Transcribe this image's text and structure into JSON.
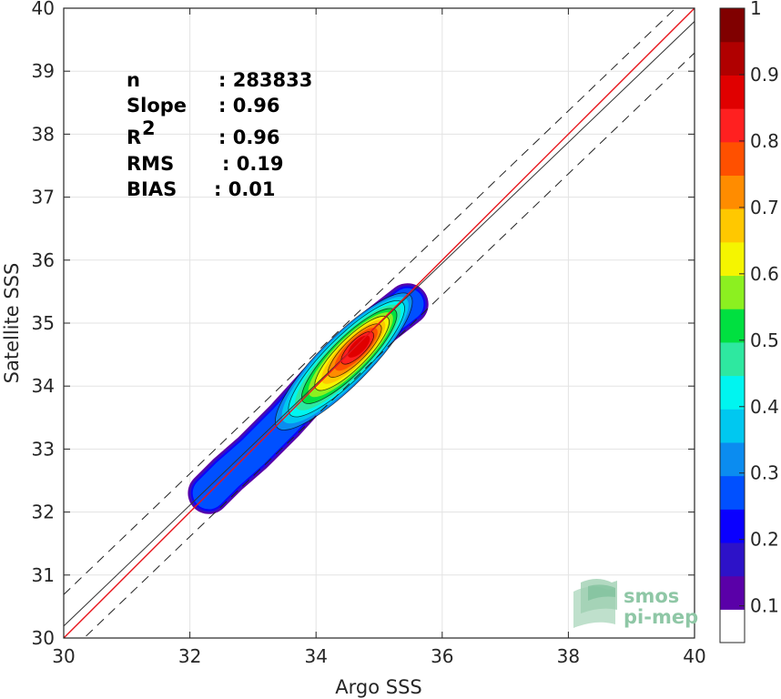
{
  "chart_data": {
    "type": "density-contour-scatter",
    "xlabel": "Argo SSS",
    "ylabel": "Satellite SSS",
    "xlim": [
      30,
      40
    ],
    "ylim": [
      30,
      40
    ],
    "xticks": [
      30,
      32,
      34,
      36,
      38,
      40
    ],
    "yticks": [
      30,
      31,
      32,
      33,
      34,
      35,
      36,
      37,
      38,
      39,
      40
    ],
    "grid": true,
    "stats": [
      {
        "label": "n",
        "value": ": 283833"
      },
      {
        "label": "Slope",
        "value": ": 0.96"
      },
      {
        "label": "R",
        "sup": "2",
        "value": ": 0.96"
      },
      {
        "label": "RMS",
        "value": ": 0.19"
      },
      {
        "label": "BIAS",
        "value": ": 0.01"
      }
    ],
    "lines": {
      "identity": {
        "slope": 1,
        "intercept": 0,
        "color": "#e8141b"
      },
      "fit": {
        "slope": 0.96,
        "intercept": 1.39,
        "color": "#333333"
      },
      "envelope_offset": 0.5
    },
    "density": {
      "peak": [
        34.7,
        34.65
      ],
      "ridge": [
        [
          32.3,
          32.3
        ],
        [
          32.6,
          32.6
        ],
        [
          33.0,
          32.95
        ],
        [
          33.5,
          33.45
        ],
        [
          34.0,
          34.0
        ],
        [
          34.4,
          34.4
        ],
        [
          34.7,
          34.65
        ],
        [
          35.0,
          34.95
        ],
        [
          35.45,
          35.3
        ]
      ],
      "levels": [
        0.05,
        0.15,
        0.25,
        0.35,
        0.45,
        0.55,
        0.65,
        0.75,
        0.85,
        0.95
      ]
    },
    "colorbar": {
      "min": 0,
      "max": 1,
      "ticks": [
        "0.1",
        "0.2",
        "0.3",
        "0.4",
        "0.5",
        "0.6",
        "0.7",
        "0.8",
        "0.9",
        "1"
      ],
      "tick_values": [
        0.1,
        0.2,
        0.3,
        0.4,
        0.5,
        0.6,
        0.7,
        0.8,
        0.9,
        1.0
      ],
      "colors": [
        "#ffffff",
        "#5a00a8",
        "#2d12c8",
        "#0a00ff",
        "#0050ff",
        "#0b8cf0",
        "#00c8f0",
        "#00f5f0",
        "#2ee8a0",
        "#00e040",
        "#8cf020",
        "#f5f500",
        "#ffc800",
        "#ff8c00",
        "#ff5000",
        "#ff2020",
        "#e00000",
        "#b00000",
        "#800000"
      ]
    },
    "logo": {
      "line1": "smos",
      "line2": "pi-mep"
    }
  }
}
